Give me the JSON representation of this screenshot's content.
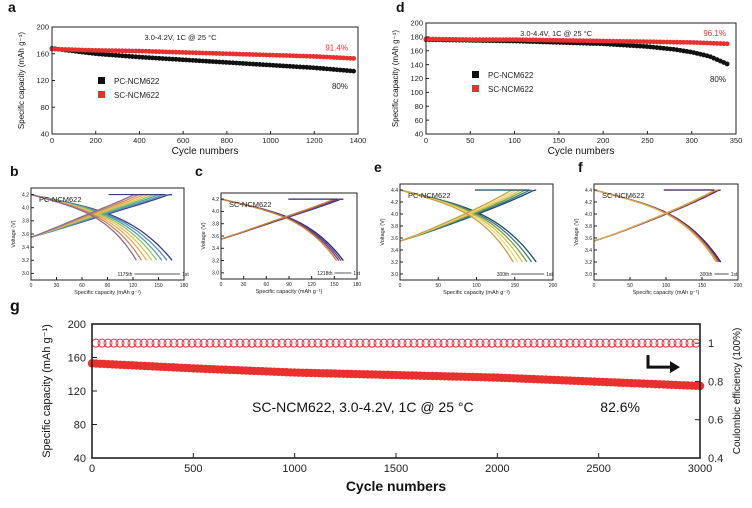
{
  "colors": {
    "red": "#e8312f",
    "black": "#111111",
    "axis": "#222222",
    "curves": [
      "#3a3f7a",
      "#5a8fc4",
      "#4ea6a0",
      "#8cc46a",
      "#e0c24a",
      "#f0a85a",
      "#c98a4a",
      "#8a6a9a"
    ],
    "curves_c": [
      "#2a2a6a",
      "#4a4aa0",
      "#9a3a6a",
      "#c8843a"
    ],
    "curves_e": [
      "#1a4a6a",
      "#3a7a8a",
      "#7aa04a",
      "#d8c04a",
      "#f0d870",
      "#c8a040"
    ],
    "curves_f": [
      "#3a1a5a",
      "#7a3a8a",
      "#c8803a",
      "#d8a850"
    ]
  },
  "chart_data": [
    {
      "id": "a",
      "type": "scatter",
      "panel_label": "a",
      "condition": "3.0-4.2V, 1C @ 25 °C",
      "xlabel": "Cycle numbers",
      "ylabel": "Specific capacity (mAh g⁻¹)",
      "xlim": [
        0,
        1400
      ],
      "ylim": [
        40,
        200
      ],
      "xticks": [
        "0",
        "200",
        "400",
        "600",
        "800",
        "1000",
        "1200",
        "1400"
      ],
      "yticks": [
        "40",
        "80",
        "120",
        "160",
        "200"
      ],
      "legend_position": "center-left",
      "series": [
        {
          "name": "PC-NCM622",
          "color": "black",
          "retention": "80%",
          "points": [
            [
              0,
              168
            ],
            [
              100,
              164
            ],
            [
              200,
              160
            ],
            [
              400,
              155
            ],
            [
              600,
              151
            ],
            [
              800,
              147
            ],
            [
              1000,
              143
            ],
            [
              1200,
              139
            ],
            [
              1380,
              134
            ]
          ]
        },
        {
          "name": "SC-NCM622",
          "color": "red",
          "retention": "91.4%",
          "points": [
            [
              0,
              167
            ],
            [
              200,
              165
            ],
            [
              400,
              164
            ],
            [
              600,
              162
            ],
            [
              800,
              160
            ],
            [
              1000,
              158
            ],
            [
              1200,
              156
            ],
            [
              1380,
              153
            ]
          ]
        }
      ]
    },
    {
      "id": "d",
      "type": "scatter",
      "panel_label": "d",
      "condition": "3.0-4.4V, 1C @ 25 °C",
      "xlabel": "Cycle numbers",
      "ylabel": "Specific capacity (mAh g⁻¹)",
      "xlim": [
        0,
        350
      ],
      "ylim": [
        40,
        200
      ],
      "xticks": [
        "0",
        "50",
        "100",
        "150",
        "200",
        "250",
        "300",
        "350"
      ],
      "yticks": [
        "40",
        "60",
        "80",
        "100",
        "120",
        "140",
        "160",
        "180",
        "200"
      ],
      "legend_position": "center-left",
      "series": [
        {
          "name": "PC-NCM622",
          "color": "black",
          "retention": "80%",
          "points": [
            [
              0,
              176
            ],
            [
              50,
              175
            ],
            [
              100,
              174
            ],
            [
              150,
              172
            ],
            [
              200,
              170
            ],
            [
              250,
              166
            ],
            [
              280,
              162
            ],
            [
              300,
              158
            ],
            [
              320,
              152
            ],
            [
              340,
              141
            ]
          ]
        },
        {
          "name": "SC-NCM622",
          "color": "red",
          "retention": "96.1%",
          "points": [
            [
              0,
              177
            ],
            [
              50,
              176
            ],
            [
              100,
              176
            ],
            [
              150,
              175
            ],
            [
              200,
              174
            ],
            [
              250,
              173
            ],
            [
              300,
              172
            ],
            [
              340,
              170
            ]
          ]
        }
      ]
    },
    {
      "id": "b",
      "type": "line",
      "panel_label": "b",
      "name": "PC-NCM622",
      "xlabel": "Specific capacity (mAh g⁻¹)",
      "ylabel": "Voltage (V)",
      "xlim": [
        0,
        180
      ],
      "ylim": [
        2.9,
        4.3
      ],
      "xticks": [
        "0",
        "30",
        "60",
        "90",
        "120",
        "150",
        "180"
      ],
      "yticks": [
        "3.0",
        "3.2",
        "3.4",
        "3.6",
        "3.8",
        "4.0",
        "4.2"
      ],
      "arrow_labels": [
        "1175th",
        "1st"
      ],
      "capacities": [
        166,
        160,
        154,
        148,
        142,
        136,
        130,
        124
      ]
    },
    {
      "id": "c",
      "type": "line",
      "panel_label": "c",
      "name": "SC-NCM622",
      "xlabel": "Specific capacity (mAh g⁻¹)",
      "ylabel": "Voltage (V)",
      "xlim": [
        0,
        180
      ],
      "ylim": [
        2.9,
        4.3
      ],
      "xticks": [
        "0",
        "30",
        "60",
        "90",
        "120",
        "150",
        "180"
      ],
      "yticks": [
        "3.0",
        "3.2",
        "3.4",
        "3.6",
        "3.8",
        "4.0",
        "4.2"
      ],
      "arrow_labels": [
        "1218th",
        "1st"
      ],
      "capacities": [
        162,
        159,
        156,
        153
      ]
    },
    {
      "id": "e",
      "type": "line",
      "panel_label": "e",
      "name": "PC-NCM622",
      "xlabel": "Specific capacity (mAh g⁻¹)",
      "ylabel": "Voltage (V)",
      "xlim": [
        0,
        200
      ],
      "ylim": [
        2.9,
        4.5
      ],
      "xticks": [
        "0",
        "50",
        "100",
        "150",
        "200"
      ],
      "yticks": [
        "3.0",
        "3.2",
        "3.4",
        "3.6",
        "3.8",
        "4.0",
        "4.2",
        "4.4"
      ],
      "arrow_labels": [
        "300th",
        "1st"
      ],
      "capacities": [
        178,
        172,
        166,
        160,
        154,
        148
      ]
    },
    {
      "id": "f",
      "type": "line",
      "panel_label": "f",
      "name": "SC-NCM622",
      "xlabel": "Specific capacity (mAh g⁻¹)",
      "ylabel": "Voltage (V)",
      "xlim": [
        0,
        200
      ],
      "ylim": [
        2.9,
        4.5
      ],
      "xticks": [
        "0",
        "50",
        "100",
        "150",
        "200"
      ],
      "yticks": [
        "3.0",
        "3.2",
        "3.4",
        "3.6",
        "3.8",
        "4.0",
        "4.2",
        "4.4"
      ],
      "arrow_labels": [
        "300th",
        "1st"
      ],
      "capacities": [
        176,
        174,
        172,
        170
      ]
    },
    {
      "id": "g",
      "type": "scatter",
      "panel_label": "g",
      "annotation": "SC-NCM622, 3.0-4.2V, 1C @ 25 °C",
      "retention": "82.6%",
      "xlabel": "Cycle numbers",
      "ylabel": "Specific capacity (mAh g⁻¹)",
      "y2label": "Coulombic efficiency (100%)",
      "xlim": [
        0,
        3000
      ],
      "ylim": [
        40,
        200
      ],
      "y2lim": [
        0.4,
        1.1
      ],
      "xticks": [
        "0",
        "500",
        "1000",
        "1500",
        "2000",
        "2500",
        "3000"
      ],
      "yticks": [
        "40",
        "80",
        "120",
        "160",
        "200"
      ],
      "y2ticks": [
        "0.4",
        "0.6",
        "0.8",
        "1"
      ],
      "series": [
        {
          "name": "capacity",
          "color": "red",
          "points": [
            [
              0,
              153
            ],
            [
              250,
              150
            ],
            [
              500,
              147
            ],
            [
              1000,
              142
            ],
            [
              1500,
              139
            ],
            [
              2000,
              136
            ],
            [
              2500,
              131
            ],
            [
              3000,
              126
            ]
          ]
        },
        {
          "name": "efficiency",
          "color": "red",
          "axis": "right",
          "value": 1.0
        }
      ]
    }
  ]
}
